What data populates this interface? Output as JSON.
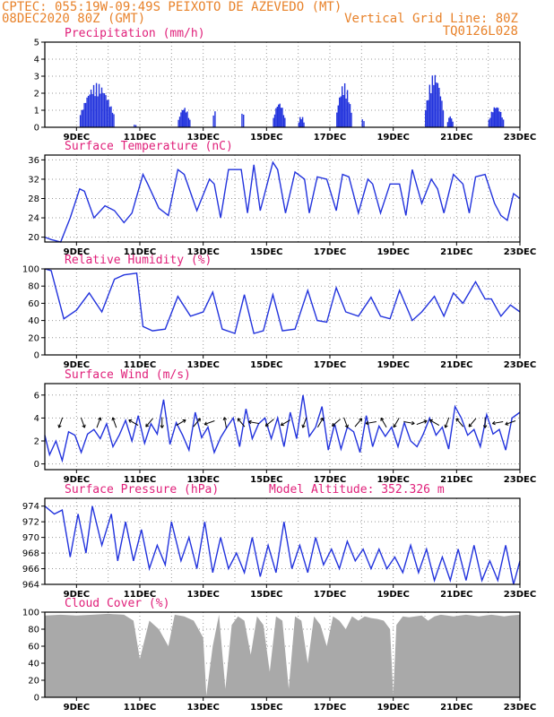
{
  "header": {
    "line1_left": "CPTEC:  055:19W-09:49S  PEIXOTO DE AZEVEDO (MT)",
    "line2_left": "08DEC2020 80Z (GMT)",
    "line2_right": "Vertical Grid Line: 80Z",
    "line3_right": "TQ0126L028"
  },
  "colors": {
    "header": "#e8822a",
    "title": "#e0207a",
    "series": "#2233dd",
    "bars": "#2233dd",
    "cloud": "#a9a9a9",
    "grid": "#999999"
  },
  "chart_data": [
    {
      "type": "bar",
      "title": "Precipitation (mm/h)",
      "ylim": [
        0,
        5
      ],
      "yticks": [
        0,
        1,
        2,
        3,
        4,
        5
      ],
      "xticks": [
        "9DEC",
        "11DEC",
        "13DEC",
        "15DEC",
        "17DEC",
        "19DEC",
        "21DEC",
        "23DEC"
      ],
      "xlim_days": [
        8.0,
        23.0
      ],
      "bursts": [
        {
          "start": 9.1,
          "end": 10.2,
          "peak": 2.6
        },
        {
          "start": 10.8,
          "end": 10.9,
          "peak": 0.2
        },
        {
          "start": 12.2,
          "end": 12.6,
          "peak": 1.2
        },
        {
          "start": 13.3,
          "end": 13.4,
          "peak": 1.2
        },
        {
          "start": 14.2,
          "end": 14.3,
          "peak": 1.1
        },
        {
          "start": 15.2,
          "end": 15.6,
          "peak": 1.5
        },
        {
          "start": 16.0,
          "end": 16.2,
          "peak": 0.7
        },
        {
          "start": 17.2,
          "end": 17.7,
          "peak": 2.6
        },
        {
          "start": 18.0,
          "end": 18.1,
          "peak": 0.6
        },
        {
          "start": 20.0,
          "end": 20.6,
          "peak": 3.2
        },
        {
          "start": 20.7,
          "end": 20.9,
          "peak": 0.7
        },
        {
          "start": 22.0,
          "end": 22.5,
          "peak": 1.3
        }
      ]
    },
    {
      "type": "line",
      "title": "Surface Temperature (nC)",
      "ylim": [
        19,
        37
      ],
      "yticks": [
        20,
        24,
        28,
        32,
        36
      ],
      "xticks": [
        "9DEC",
        "11DEC",
        "13DEC",
        "15DEC",
        "17DEC",
        "19DEC",
        "21DEC",
        "23DEC"
      ],
      "days": [
        8.0,
        8.2,
        8.5,
        8.8,
        9.1,
        9.25,
        9.55,
        9.9,
        10.2,
        10.5,
        10.75,
        11.1,
        11.25,
        11.6,
        11.9,
        12.2,
        12.4,
        12.8,
        13.2,
        13.35,
        13.55,
        13.8,
        14.2,
        14.4,
        14.6,
        14.8,
        15.2,
        15.35,
        15.6,
        15.9,
        16.2,
        16.35,
        16.6,
        16.9,
        17.2,
        17.4,
        17.6,
        17.9,
        18.2,
        18.35,
        18.6,
        18.9,
        19.2,
        19.4,
        19.6,
        19.9,
        20.2,
        20.4,
        20.6,
        20.9,
        21.2,
        21.4,
        21.6,
        21.9,
        22.2,
        22.4,
        22.6,
        22.8,
        23.0
      ],
      "values": [
        20,
        19.5,
        19,
        24,
        30,
        29.5,
        24,
        26.5,
        25.5,
        23,
        25,
        33,
        31,
        26,
        24.5,
        34,
        33,
        25.5,
        32,
        31,
        24,
        34,
        34,
        25,
        35,
        25.5,
        35.5,
        34,
        25,
        33.5,
        32,
        25,
        32.5,
        32,
        25.5,
        33,
        32.5,
        25,
        32,
        31,
        25,
        31,
        31,
        24.5,
        34,
        27,
        32,
        30,
        25,
        33,
        31,
        25,
        32.5,
        33,
        27,
        24.5,
        23.5,
        29,
        28
      ]
    },
    {
      "type": "line",
      "title": "Relative Humidity (%)",
      "ylim": [
        0,
        100
      ],
      "yticks": [
        0,
        20,
        40,
        60,
        80,
        100
      ],
      "xticks": [
        "9DEC",
        "11DEC",
        "13DEC",
        "15DEC",
        "17DEC",
        "19DEC",
        "21DEC",
        "23DEC"
      ],
      "days": [
        8.0,
        8.2,
        8.6,
        9.0,
        9.4,
        9.8,
        10.2,
        10.5,
        10.9,
        11.1,
        11.4,
        11.8,
        12.2,
        12.6,
        13.0,
        13.3,
        13.6,
        14.0,
        14.3,
        14.6,
        14.9,
        15.2,
        15.5,
        15.9,
        16.3,
        16.6,
        16.9,
        17.2,
        17.5,
        17.9,
        18.3,
        18.6,
        18.9,
        19.2,
        19.6,
        19.9,
        20.3,
        20.6,
        20.9,
        21.2,
        21.6,
        21.9,
        22.1,
        22.4,
        22.7,
        23.0
      ],
      "values": [
        100,
        98,
        42,
        52,
        72,
        50,
        88,
        93,
        95,
        33,
        28,
        30,
        68,
        45,
        50,
        73,
        30,
        25,
        70,
        25,
        28,
        70,
        28,
        30,
        75,
        40,
        38,
        78,
        50,
        45,
        67,
        45,
        42,
        75,
        40,
        50,
        68,
        45,
        72,
        60,
        85,
        65,
        65,
        45,
        58,
        50
      ]
    },
    {
      "type": "line",
      "title": "Surface Wind (m/s)",
      "ylim": [
        -0.5,
        7
      ],
      "yticks": [
        0,
        2,
        4,
        6
      ],
      "xticks": [
        "9DEC",
        "11DEC",
        "13DEC",
        "15DEC",
        "17DEC",
        "19DEC",
        "21DEC",
        "23DEC"
      ],
      "days": [
        8.0,
        8.15,
        8.35,
        8.55,
        8.75,
        8.95,
        9.15,
        9.35,
        9.55,
        9.75,
        9.95,
        10.15,
        10.35,
        10.55,
        10.75,
        10.95,
        11.15,
        11.35,
        11.55,
        11.75,
        11.95,
        12.15,
        12.35,
        12.55,
        12.75,
        12.95,
        13.15,
        13.35,
        13.55,
        13.75,
        13.95,
        14.15,
        14.35,
        14.55,
        14.75,
        14.95,
        15.15,
        15.35,
        15.55,
        15.75,
        15.95,
        16.15,
        16.35,
        16.55,
        16.75,
        16.95,
        17.15,
        17.35,
        17.55,
        17.75,
        17.95,
        18.15,
        18.35,
        18.55,
        18.75,
        18.95,
        19.15,
        19.35,
        19.55,
        19.75,
        19.95,
        20.15,
        20.35,
        20.55,
        20.75,
        20.95,
        21.15,
        21.35,
        21.55,
        21.75,
        21.95,
        22.15,
        22.35,
        22.55,
        22.75,
        23.0
      ],
      "values": [
        2.5,
        0.8,
        2.0,
        0.3,
        2.8,
        2.5,
        1.0,
        2.6,
        3.0,
        2.2,
        3.5,
        1.5,
        2.5,
        3.8,
        2.0,
        4.2,
        1.8,
        3.5,
        2.6,
        5.6,
        1.7,
        3.6,
        2.5,
        1.2,
        4.5,
        2.3,
        3.2,
        1.0,
        2.3,
        3.2,
        4.0,
        1.5,
        4.8,
        2.2,
        3.5,
        4.0,
        2.2,
        4.0,
        1.5,
        4.5,
        2.2,
        6.0,
        2.4,
        3.2,
        5.0,
        1.2,
        3.5,
        1.3,
        3.2,
        2.8,
        1.0,
        4.2,
        1.5,
        3.3,
        2.4,
        3.2,
        1.5,
        3.6,
        2.0,
        1.5,
        2.6,
        4.0,
        2.5,
        3.2,
        1.3,
        5.0,
        4.0,
        2.5,
        3.0,
        1.5,
        4.3,
        2.6,
        3.0,
        1.2,
        4.0,
        4.5
      ],
      "arrow_days": [
        8.5,
        9.2,
        9.7,
        10.2,
        10.8,
        11.3,
        11.7,
        12.3,
        12.8,
        13.2,
        13.7,
        14.2,
        14.6,
        15.1,
        15.6,
        16.2,
        16.7,
        17.2,
        17.5,
        17.9,
        18.3,
        18.7,
        19.1,
        19.5,
        19.9,
        20.3,
        20.7,
        21.1,
        21.5,
        21.9,
        22.3,
        22.7
      ],
      "arrow_dirs": [
        200,
        160,
        20,
        340,
        300,
        220,
        180,
        60,
        40,
        250,
        350,
        320,
        280,
        230,
        240,
        200,
        30,
        230,
        160,
        40,
        260,
        330,
        210,
        100,
        70,
        300,
        200,
        320,
        220,
        180,
        260,
        250
      ]
    },
    {
      "type": "line",
      "title": "Surface Pressure (hPa)",
      "annotation": "Model Altitude: 352.326 m",
      "ylim": [
        964,
        975
      ],
      "yticks": [
        964,
        966,
        968,
        970,
        972,
        974
      ],
      "xticks": [
        "9DEC",
        "11DEC",
        "13DEC",
        "15DEC",
        "17DEC",
        "19DEC",
        "21DEC",
        "23DEC"
      ],
      "days": [
        8.0,
        8.3,
        8.55,
        8.8,
        9.05,
        9.3,
        9.5,
        9.8,
        10.1,
        10.3,
        10.55,
        10.8,
        11.05,
        11.3,
        11.55,
        11.8,
        12.0,
        12.3,
        12.55,
        12.8,
        13.05,
        13.3,
        13.55,
        13.8,
        14.05,
        14.3,
        14.55,
        14.8,
        15.05,
        15.3,
        15.55,
        15.8,
        16.05,
        16.3,
        16.55,
        16.8,
        17.05,
        17.3,
        17.55,
        17.8,
        18.05,
        18.3,
        18.55,
        18.8,
        19.05,
        19.3,
        19.55,
        19.8,
        20.05,
        20.3,
        20.55,
        20.8,
        21.05,
        21.3,
        21.55,
        21.8,
        22.05,
        22.3,
        22.55,
        22.8,
        23.0
      ],
      "values": [
        974,
        973,
        973.5,
        967.5,
        973,
        968,
        974,
        969,
        973,
        967,
        972,
        967,
        971,
        966,
        969,
        966.5,
        972,
        967,
        970,
        966,
        972,
        965.5,
        970,
        966,
        968,
        965.5,
        970,
        965,
        969,
        965.5,
        972,
        966,
        969,
        965.5,
        970,
        966.5,
        968.5,
        966,
        969.5,
        967,
        968.5,
        966,
        968.5,
        966,
        967.5,
        965.5,
        969,
        965.5,
        968.5,
        964.5,
        967.5,
        964.5,
        968.5,
        964.5,
        969,
        964.5,
        967,
        964.5,
        969,
        964,
        967
      ]
    },
    {
      "type": "area",
      "title": "Cloud Cover (%)",
      "ylim": [
        0,
        100
      ],
      "yticks": [
        0,
        20,
        40,
        60,
        80,
        100
      ],
      "xticks": [
        "9DEC",
        "11DEC",
        "13DEC",
        "15DEC",
        "17DEC",
        "19DEC",
        "21DEC",
        "23DEC"
      ],
      "days": [
        8.0,
        8.5,
        9.0,
        9.5,
        10.0,
        10.5,
        10.8,
        11.0,
        11.3,
        11.6,
        11.9,
        12.1,
        12.4,
        12.7,
        13.0,
        13.1,
        13.3,
        13.5,
        13.7,
        13.9,
        14.1,
        14.3,
        14.5,
        14.7,
        14.9,
        15.1,
        15.3,
        15.5,
        15.7,
        15.9,
        16.1,
        16.3,
        16.5,
        16.7,
        16.9,
        17.1,
        17.3,
        17.5,
        17.7,
        17.9,
        18.1,
        18.3,
        18.5,
        18.7,
        18.9,
        19.0,
        19.1,
        19.3,
        19.5,
        19.7,
        19.9,
        20.1,
        20.3,
        20.5,
        20.7,
        20.9,
        21.1,
        21.3,
        21.5,
        21.7,
        21.9,
        22.1,
        22.3,
        22.5,
        22.7,
        23.0
      ],
      "values": [
        96,
        97,
        96,
        97,
        98,
        97,
        90,
        45,
        90,
        80,
        60,
        97,
        95,
        90,
        70,
        2,
        60,
        97,
        10,
        85,
        95,
        90,
        50,
        95,
        85,
        30,
        95,
        90,
        10,
        95,
        90,
        40,
        95,
        85,
        60,
        95,
        90,
        80,
        95,
        90,
        95,
        93,
        92,
        90,
        80,
        3,
        85,
        95,
        94,
        95,
        96,
        90,
        95,
        97,
        96,
        95,
        96,
        97,
        96,
        95,
        96,
        97,
        96,
        95,
        96,
        97
      ]
    }
  ]
}
